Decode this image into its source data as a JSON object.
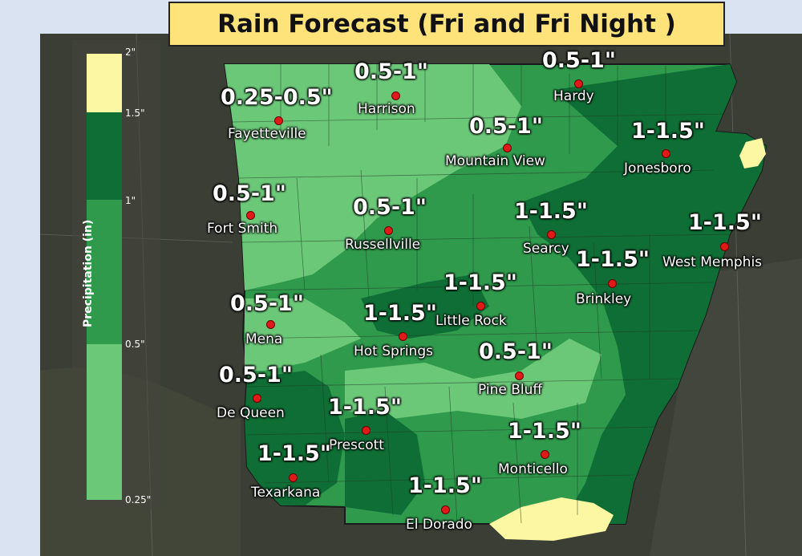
{
  "title": "Rain Forecast (Fri and Fri Night )",
  "legend": {
    "axis_label": "Precipitation (in)",
    "ticks": [
      "2\"",
      "1.5\"",
      "1\"",
      "0.5\"",
      "0.25\""
    ],
    "colors": {
      "light_yellow": "#fbf7a3",
      "dark_green": "#0e6e35",
      "medium_green": "#2f9a4c",
      "light_green": "#6cc879"
    }
  },
  "locations": [
    {
      "city": "Fayetteville",
      "amount": "0.25-0.5\""
    },
    {
      "city": "Harrison",
      "amount": "0.5-1\""
    },
    {
      "city": "Hardy",
      "amount": "0.5-1\""
    },
    {
      "city": "Mountain View",
      "amount": "0.5-1\""
    },
    {
      "city": "Jonesboro",
      "amount": "1-1.5\""
    },
    {
      "city": "Fort Smith",
      "amount": "0.5-1\""
    },
    {
      "city": "Russellville",
      "amount": "0.5-1\""
    },
    {
      "city": "Searcy",
      "amount": "1-1.5\""
    },
    {
      "city": "West Memphis",
      "amount": "1-1.5\""
    },
    {
      "city": "Brinkley",
      "amount": "1-1.5\""
    },
    {
      "city": "Little Rock",
      "amount": "1-1.5\""
    },
    {
      "city": "Mena",
      "amount": "0.5-1\""
    },
    {
      "city": "Hot Springs",
      "amount": "1-1.5\""
    },
    {
      "city": "Pine Bluff",
      "amount": "0.5-1\""
    },
    {
      "city": "De Queen",
      "amount": "0.5-1\""
    },
    {
      "city": "Prescott",
      "amount": "1-1.5\""
    },
    {
      "city": "Monticello",
      "amount": "1-1.5\""
    },
    {
      "city": "Texarkana",
      "amount": "1-1.5\""
    },
    {
      "city": "El Dorado",
      "amount": "1-1.5\""
    }
  ]
}
